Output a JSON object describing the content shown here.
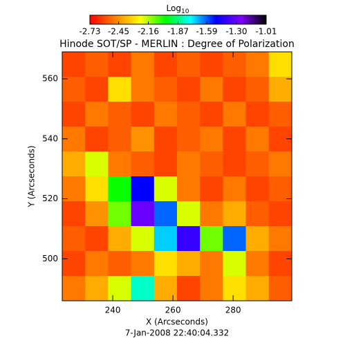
{
  "chart_data": {
    "type": "heatmap",
    "title": "Hinode SOT/SP - MERLIN : Degree of Polarization",
    "xlabel": "X (Arcseconds)",
    "ylabel": "Y (Arcseconds)",
    "footer": "7-Jan-2008 22:40:04.332",
    "colorbar_label": "Log",
    "colorbar_label_sub": "10",
    "xlim": [
      223.2,
      299.5
    ],
    "ylim": [
      486,
      569
    ],
    "xticks": [
      240,
      260,
      280
    ],
    "yticks": [
      500,
      520,
      540,
      560
    ],
    "clim": [
      -2.73,
      -1.01
    ],
    "cticks": [
      -2.73,
      -2.45,
      -2.16,
      -1.87,
      -1.59,
      {
        "value": -1.3,
        "label": "-1.30"
      },
      -1.01
    ],
    "colormap": [
      "#ff0000",
      "#ff8000",
      "#ffff00",
      "#00ff00",
      "#00ffff",
      "#0000ff",
      "#8000ff",
      "#000000"
    ],
    "z": [
      [
        -2.6,
        -2.55,
        -2.6,
        -2.5,
        -2.6,
        -2.55,
        -2.6,
        -2.55,
        -2.5,
        -2.3
      ],
      [
        -2.55,
        -2.6,
        -2.3,
        -2.5,
        -2.55,
        -2.6,
        -2.5,
        -2.6,
        -2.55,
        -2.4
      ],
      [
        -2.6,
        -2.5,
        -2.55,
        -2.6,
        -2.5,
        -2.55,
        -2.6,
        -2.5,
        -2.6,
        -2.55
      ],
      [
        -2.5,
        -2.6,
        -2.55,
        -2.45,
        -2.6,
        -2.55,
        -2.5,
        -2.6,
        -2.5,
        -2.6
      ],
      [
        -2.4,
        -2.2,
        -2.5,
        -2.55,
        -2.6,
        -2.5,
        -2.55,
        -2.6,
        -2.55,
        -2.5
      ],
      [
        -2.5,
        -2.3,
        -2.0,
        -1.5,
        -2.2,
        -2.5,
        -2.6,
        -2.5,
        -2.6,
        -2.55
      ],
      [
        -2.6,
        -2.45,
        -2.1,
        -1.3,
        -1.6,
        -2.2,
        -2.5,
        -2.4,
        -2.55,
        -2.6
      ],
      [
        -2.55,
        -2.6,
        -2.4,
        -2.2,
        -1.7,
        -1.4,
        -2.1,
        -1.6,
        -2.4,
        -2.5
      ],
      [
        -2.6,
        -2.5,
        -2.55,
        -2.5,
        -2.3,
        -2.4,
        -2.5,
        -2.2,
        -2.5,
        -2.6
      ],
      [
        -2.5,
        -2.4,
        -2.2,
        -1.8,
        -2.4,
        -2.6,
        -2.5,
        -2.3,
        -2.4,
        -2.55
      ]
    ]
  }
}
